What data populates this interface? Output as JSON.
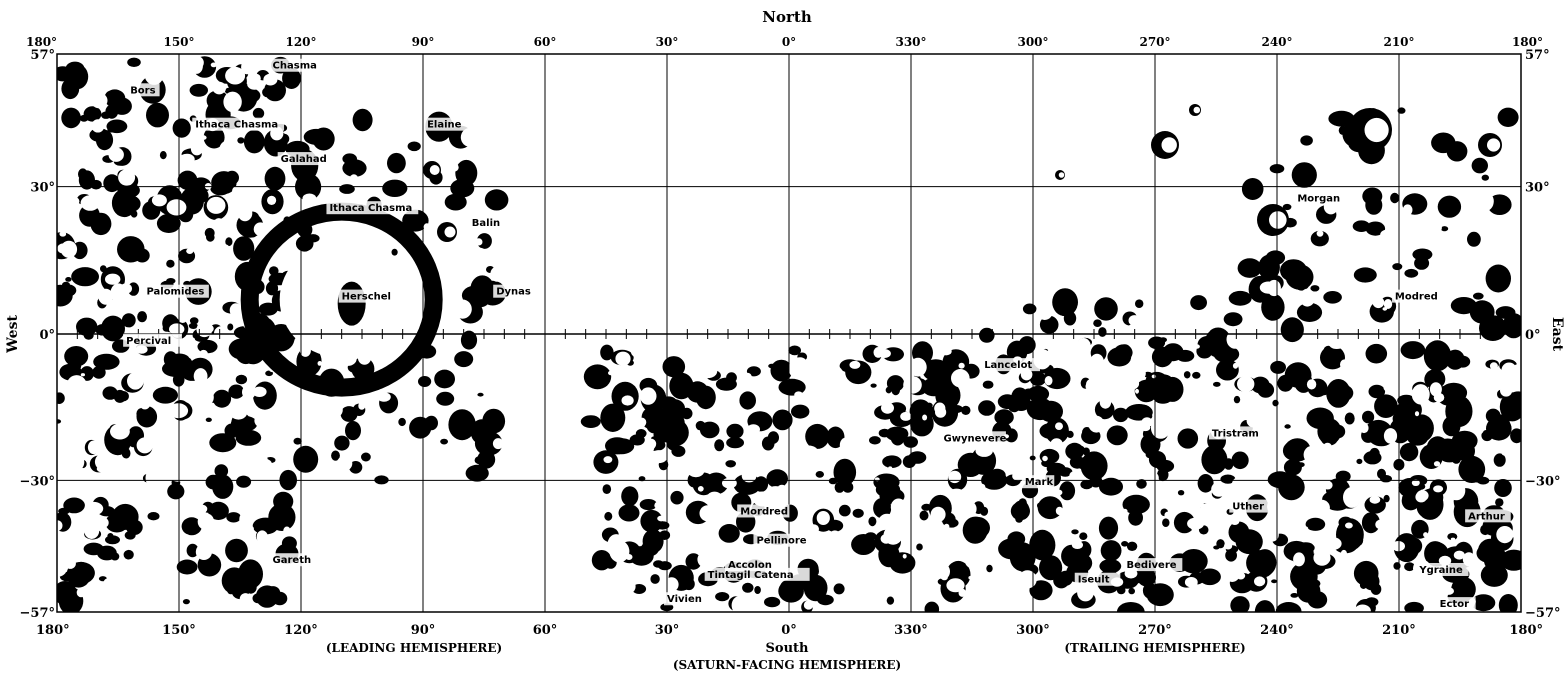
{
  "map": {
    "top_title": "North",
    "bottom_title": "South",
    "left_title": "West",
    "right_title": "East",
    "leading_hemisphere": "(LEADING HEMISPHERE)",
    "saturn_facing_hemisphere": "(SATURN-FACING HEMISPHERE)",
    "trailing_hemisphere": "(TRAILING HEMISPHERE)",
    "longitude_labels": [
      "180°",
      "150°",
      "120°",
      "90°",
      "60°",
      "30°",
      "0°",
      "330°",
      "300°",
      "270°",
      "240°",
      "210°",
      "180°"
    ],
    "latitude_labels_left": [
      "57°",
      "30°",
      "0°",
      "−30°",
      "−57°"
    ],
    "latitude_labels_right": [
      "57°",
      "30°",
      "0°",
      "−30°",
      "−57°"
    ],
    "features": [
      {
        "name": "Bors",
        "lon": 162,
        "lat": 49
      },
      {
        "name": "Ithaca Chasma",
        "lon": 146,
        "lat": 42
      },
      {
        "name": "Chasma",
        "lon": 127,
        "lat": 54
      },
      {
        "name": "Elaine",
        "lon": 89,
        "lat": 42
      },
      {
        "name": "Galahad",
        "lon": 125,
        "lat": 35
      },
      {
        "name": "Ithaca Chasma",
        "lon": 113,
        "lat": 25
      },
      {
        "name": "Balin",
        "lon": 78,
        "lat": 22
      },
      {
        "name": "Palomides",
        "lon": 158,
        "lat": 8
      },
      {
        "name": "Herschel",
        "lon": 110,
        "lat": 7
      },
      {
        "name": "Dynas",
        "lon": 72,
        "lat": 8
      },
      {
        "name": "Percival",
        "lon": 163,
        "lat": -2
      },
      {
        "name": "Gareth",
        "lon": 127,
        "lat": -47
      },
      {
        "name": "Lancelot",
        "lon": 312,
        "lat": -7
      },
      {
        "name": "Gwynevere",
        "lon": 322,
        "lat": -22
      },
      {
        "name": "Mark",
        "lon": 302,
        "lat": -31
      },
      {
        "name": "Modred",
        "lon": 211,
        "lat": 7
      },
      {
        "name": "Morgan",
        "lon": 235,
        "lat": 27
      },
      {
        "name": "Tristram",
        "lon": 256,
        "lat": -21
      },
      {
        "name": "Arthur",
        "lon": 193,
        "lat": -38
      },
      {
        "name": "Uther",
        "lon": 251,
        "lat": -36
      },
      {
        "name": "Bedivere",
        "lon": 277,
        "lat": -48
      },
      {
        "name": "Iseult",
        "lon": 289,
        "lat": -51
      },
      {
        "name": "Accolon",
        "lon": 15,
        "lat": -48
      },
      {
        "name": "Tintagil Catena",
        "lon": 20,
        "lat": -50
      },
      {
        "name": "Mordred",
        "lon": 12,
        "lat": -37
      },
      {
        "name": "Pellinore",
        "lon": 8,
        "lat": -43
      },
      {
        "name": "Ygraine",
        "lon": 205,
        "lat": -49
      },
      {
        "name": "Ector",
        "lon": 200,
        "lat": -56
      },
      {
        "name": "Vivien",
        "lon": 30,
        "lat": -55
      }
    ],
    "colors": {
      "ink": "#000000",
      "paper": "#ffffff"
    }
  }
}
